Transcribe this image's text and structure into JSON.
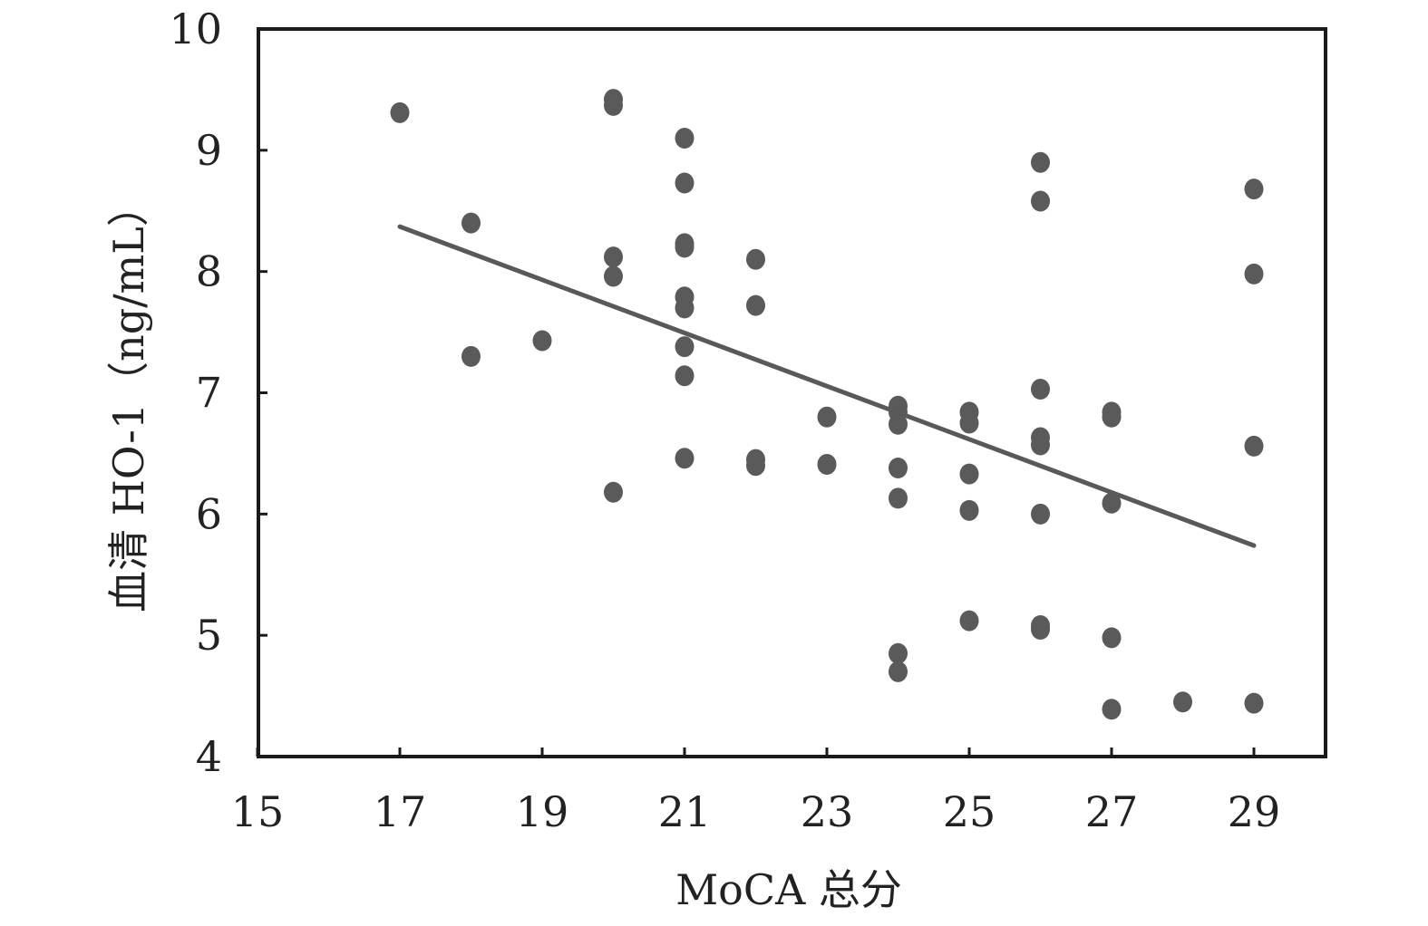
{
  "chart_data": {
    "type": "scatter",
    "xlabel": "MoCA 总分",
    "ylabel": "血清 HO-1（ng/mL）",
    "xlim": [
      15,
      30
    ],
    "ylim": [
      4,
      10
    ],
    "x_ticks": [
      15,
      17,
      19,
      21,
      23,
      25,
      27,
      29
    ],
    "y_ticks": [
      4,
      5,
      6,
      7,
      8,
      9,
      10
    ],
    "grid": false,
    "legend": "none",
    "colors": {
      "points": "#5a5a5a",
      "line": "#595959",
      "axis": "#1a1a1a"
    },
    "points": [
      [
        17,
        9.31
      ],
      [
        18,
        8.4
      ],
      [
        18,
        7.3
      ],
      [
        19,
        7.43
      ],
      [
        20,
        9.42
      ],
      [
        20,
        9.37
      ],
      [
        20,
        8.12
      ],
      [
        20,
        7.96
      ],
      [
        20,
        6.18
      ],
      [
        21,
        9.1
      ],
      [
        21,
        8.73
      ],
      [
        21,
        8.23
      ],
      [
        21,
        8.2
      ],
      [
        21,
        7.79
      ],
      [
        21,
        7.7
      ],
      [
        21,
        7.38
      ],
      [
        21,
        7.14
      ],
      [
        21,
        6.46
      ],
      [
        22,
        8.1
      ],
      [
        22,
        7.72
      ],
      [
        22,
        6.45
      ],
      [
        22,
        6.4
      ],
      [
        23,
        6.8
      ],
      [
        23,
        6.41
      ],
      [
        24,
        6.89
      ],
      [
        24,
        6.84
      ],
      [
        24,
        6.74
      ],
      [
        24,
        6.38
      ],
      [
        24,
        6.13
      ],
      [
        24,
        4.85
      ],
      [
        24,
        4.7
      ],
      [
        25,
        6.84
      ],
      [
        25,
        6.75
      ],
      [
        25,
        6.33
      ],
      [
        25,
        6.03
      ],
      [
        25,
        5.12
      ],
      [
        26,
        8.9
      ],
      [
        26,
        8.58
      ],
      [
        26,
        7.03
      ],
      [
        26,
        6.63
      ],
      [
        26,
        6.57
      ],
      [
        26,
        6.0
      ],
      [
        26,
        5.08
      ],
      [
        26,
        5.05
      ],
      [
        27,
        6.84
      ],
      [
        27,
        6.8
      ],
      [
        27,
        6.09
      ],
      [
        27,
        4.98
      ],
      [
        27,
        4.39
      ],
      [
        28,
        4.45
      ],
      [
        29,
        8.68
      ],
      [
        29,
        7.98
      ],
      [
        29,
        6.56
      ],
      [
        29,
        4.44
      ]
    ],
    "trendline": {
      "x1": 17,
      "y1": 8.37,
      "x2": 29,
      "y2": 5.74
    }
  }
}
